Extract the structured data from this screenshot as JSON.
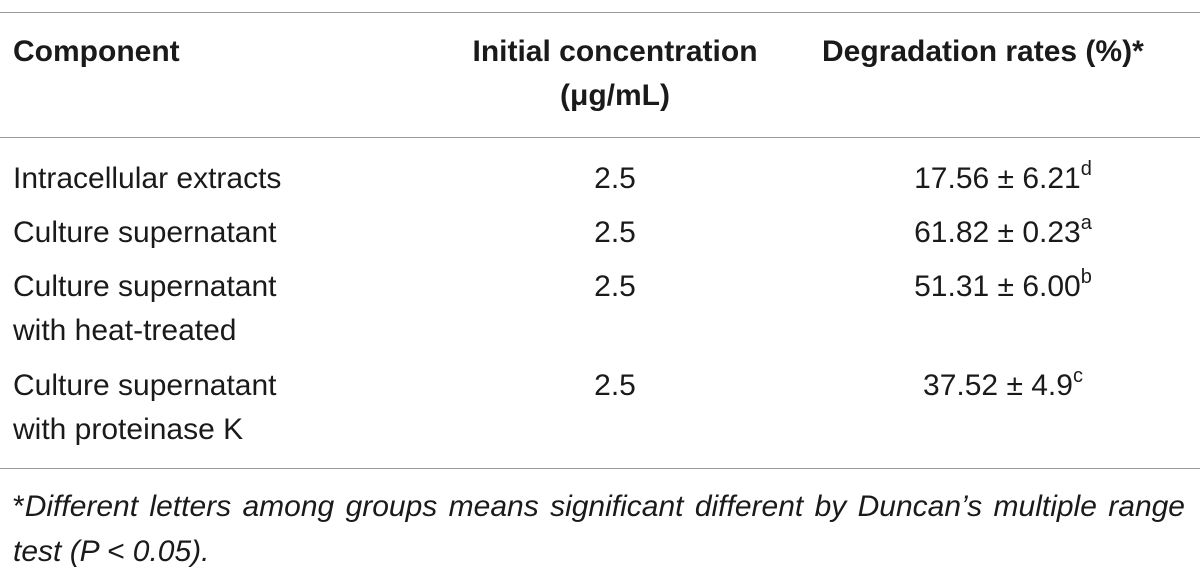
{
  "table": {
    "headers": {
      "component": "Component",
      "initial_line1": "Initial concentration",
      "initial_line2": "(μg/mL)",
      "degradation": "Degradation rates (%)*"
    },
    "rows": [
      {
        "component_line1": "Intracellular extracts",
        "component_line2": "",
        "initial": "2.5",
        "rate": "17.56 ± 6.21",
        "sup": "d"
      },
      {
        "component_line1": "Culture supernatant",
        "component_line2": "",
        "initial": "2.5",
        "rate": "61.82 ± 0.23",
        "sup": "a"
      },
      {
        "component_line1": "Culture supernatant",
        "component_line2": "with heat-treated",
        "initial": "2.5",
        "rate": "51.31 ± 6.00",
        "sup": "b"
      },
      {
        "component_line1": "Culture supernatant",
        "component_line2": "with proteinase K",
        "initial": "2.5",
        "rate": "37.52 ± 4.9",
        "sup": "c"
      }
    ]
  },
  "footnote": {
    "mark": "*",
    "text": "Different letters among groups means significant different by Duncan’s multiple range test (P < 0.05)."
  }
}
